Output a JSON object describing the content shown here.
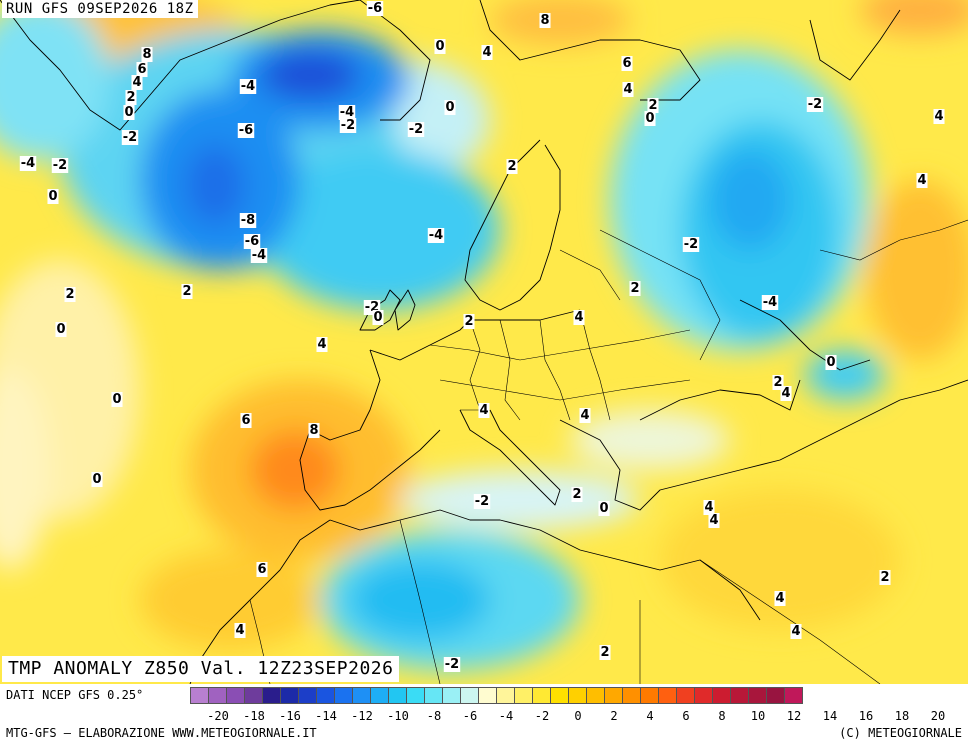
{
  "header": {
    "run": "RUN GFS 09SEP2026 18Z",
    "field": "TMP ANOMALY Z850 Val. 12Z23SEP2026"
  },
  "footer": {
    "source": "DATI NCEP GFS 0.25°",
    "credit_left": "MTG-GFS — ELABORAZIONE WWW.METEOGIORNALE.IT",
    "credit_right": "(C) METEOGIORNALE"
  },
  "legend": {
    "colors": [
      "#b87fd0",
      "#a062c0",
      "#8a4eb4",
      "#6e3c9c",
      "#2a1d8c",
      "#1c2aa8",
      "#1c3ec8",
      "#1a55e0",
      "#1a72f0",
      "#1e90f5",
      "#1eaef5",
      "#22c6f2",
      "#3adcf5",
      "#66e6f5",
      "#9af0f5",
      "#ccf6f0",
      "#fffcd0",
      "#fff59a",
      "#fff066",
      "#ffe933",
      "#ffe000",
      "#ffd000",
      "#ffbe00",
      "#ffa800",
      "#ff9000",
      "#ff7a00",
      "#ff6010",
      "#f04020",
      "#e02a2a",
      "#cc1c30",
      "#b81838",
      "#a8163c",
      "#981440",
      "#c0185a"
    ],
    "tick_labels": [
      "-20",
      "-18",
      "-16",
      "-14",
      "-12",
      "-10",
      "-8",
      "-6",
      "-4",
      "-2",
      "0",
      "2",
      "4",
      "6",
      "8",
      "10",
      "12",
      "14",
      "16",
      "18",
      "20"
    ]
  },
  "map_labels": [
    "-6",
    "8",
    "0",
    "4",
    "6",
    "4",
    "2",
    "0",
    "-2",
    "-4",
    "-2",
    "-2",
    "4",
    "2",
    "0",
    "-4",
    "-6",
    "-8",
    "-6",
    "-4",
    "-4",
    "0",
    "2",
    "2",
    "0",
    "-2",
    "0",
    "2",
    "2",
    "0",
    "-4",
    "-2",
    "4",
    "-4",
    "0",
    "4",
    "0",
    "6",
    "8",
    "4",
    "4",
    "2",
    "4",
    "0",
    "-2",
    "2",
    "0",
    "4",
    "4",
    "2",
    "6",
    "4",
    "4",
    "4",
    "-2",
    "2"
  ],
  "map_labels_pos_note": ""
}
